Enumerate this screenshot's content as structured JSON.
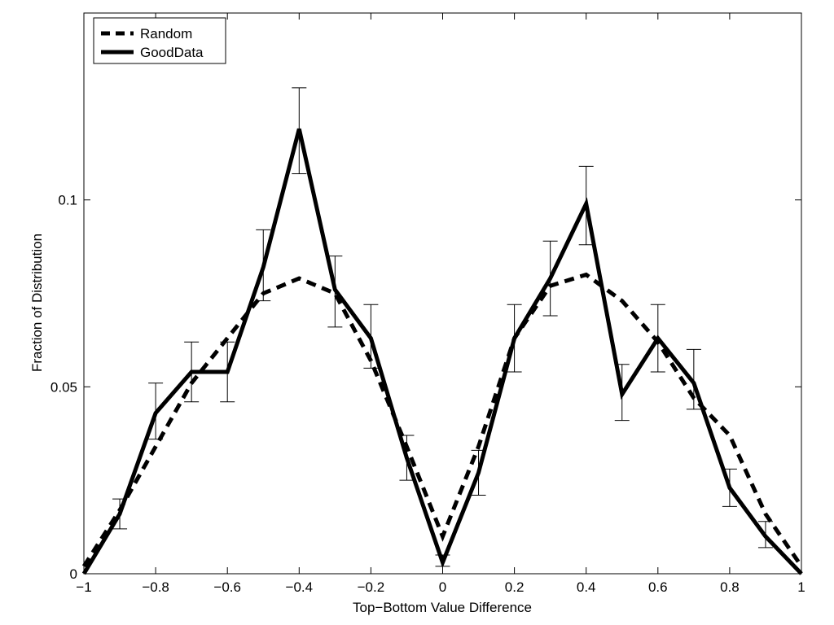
{
  "chart_data": {
    "type": "line",
    "title": "",
    "xlabel": "Top−Bottom Value Difference",
    "ylabel": "Fraction of Distribution",
    "xlim": [
      -1,
      1
    ],
    "ylim": [
      0,
      0.15
    ],
    "grid": false,
    "legend_position": "top-left",
    "x_ticks": [
      -1,
      -0.8,
      -0.6,
      -0.4,
      -0.2,
      0,
      0.2,
      0.4,
      0.6,
      0.8,
      1
    ],
    "x_tick_labels": [
      "−1",
      "−0.8",
      "−0.6",
      "−0.4",
      "−0.2",
      "0",
      "0.2",
      "0.4",
      "0.6",
      "0.8",
      "1"
    ],
    "y_ticks": [
      0,
      0.05,
      0.1
    ],
    "y_tick_labels": [
      "0",
      "0.05",
      "0.1"
    ],
    "x": [
      -1,
      -0.9,
      -0.8,
      -0.7,
      -0.6,
      -0.5,
      -0.4,
      -0.3,
      -0.2,
      -0.1,
      0,
      0.1,
      0.2,
      0.3,
      0.4,
      0.5,
      0.6,
      0.7,
      0.8,
      0.9,
      1
    ],
    "series": [
      {
        "name": "Random",
        "style": "dashed",
        "color": "#000000",
        "values": [
          0.002,
          0.017,
          0.034,
          0.051,
          0.063,
          0.075,
          0.079,
          0.075,
          0.057,
          0.034,
          0.01,
          0.034,
          0.063,
          0.077,
          0.08,
          0.073,
          0.062,
          0.047,
          0.037,
          0.016,
          0.002
        ]
      },
      {
        "name": "GoodData",
        "style": "solid",
        "color": "#000000",
        "values": [
          0.0,
          0.016,
          0.043,
          0.054,
          0.054,
          0.082,
          0.119,
          0.076,
          0.063,
          0.031,
          0.003,
          0.027,
          0.063,
          0.079,
          0.099,
          0.048,
          0.063,
          0.051,
          0.023,
          0.01,
          0.0
        ],
        "error_low": [
          0.0,
          0.012,
          0.036,
          0.046,
          0.046,
          0.073,
          0.107,
          0.066,
          0.055,
          0.025,
          0.002,
          0.021,
          0.054,
          0.069,
          0.088,
          0.041,
          0.054,
          0.044,
          0.018,
          0.007,
          0.0
        ],
        "error_high": [
          0.0,
          0.02,
          0.051,
          0.062,
          0.062,
          0.092,
          0.13,
          0.085,
          0.072,
          0.037,
          0.005,
          0.033,
          0.072,
          0.089,
          0.109,
          0.056,
          0.072,
          0.06,
          0.028,
          0.014,
          0.0
        ]
      }
    ]
  }
}
